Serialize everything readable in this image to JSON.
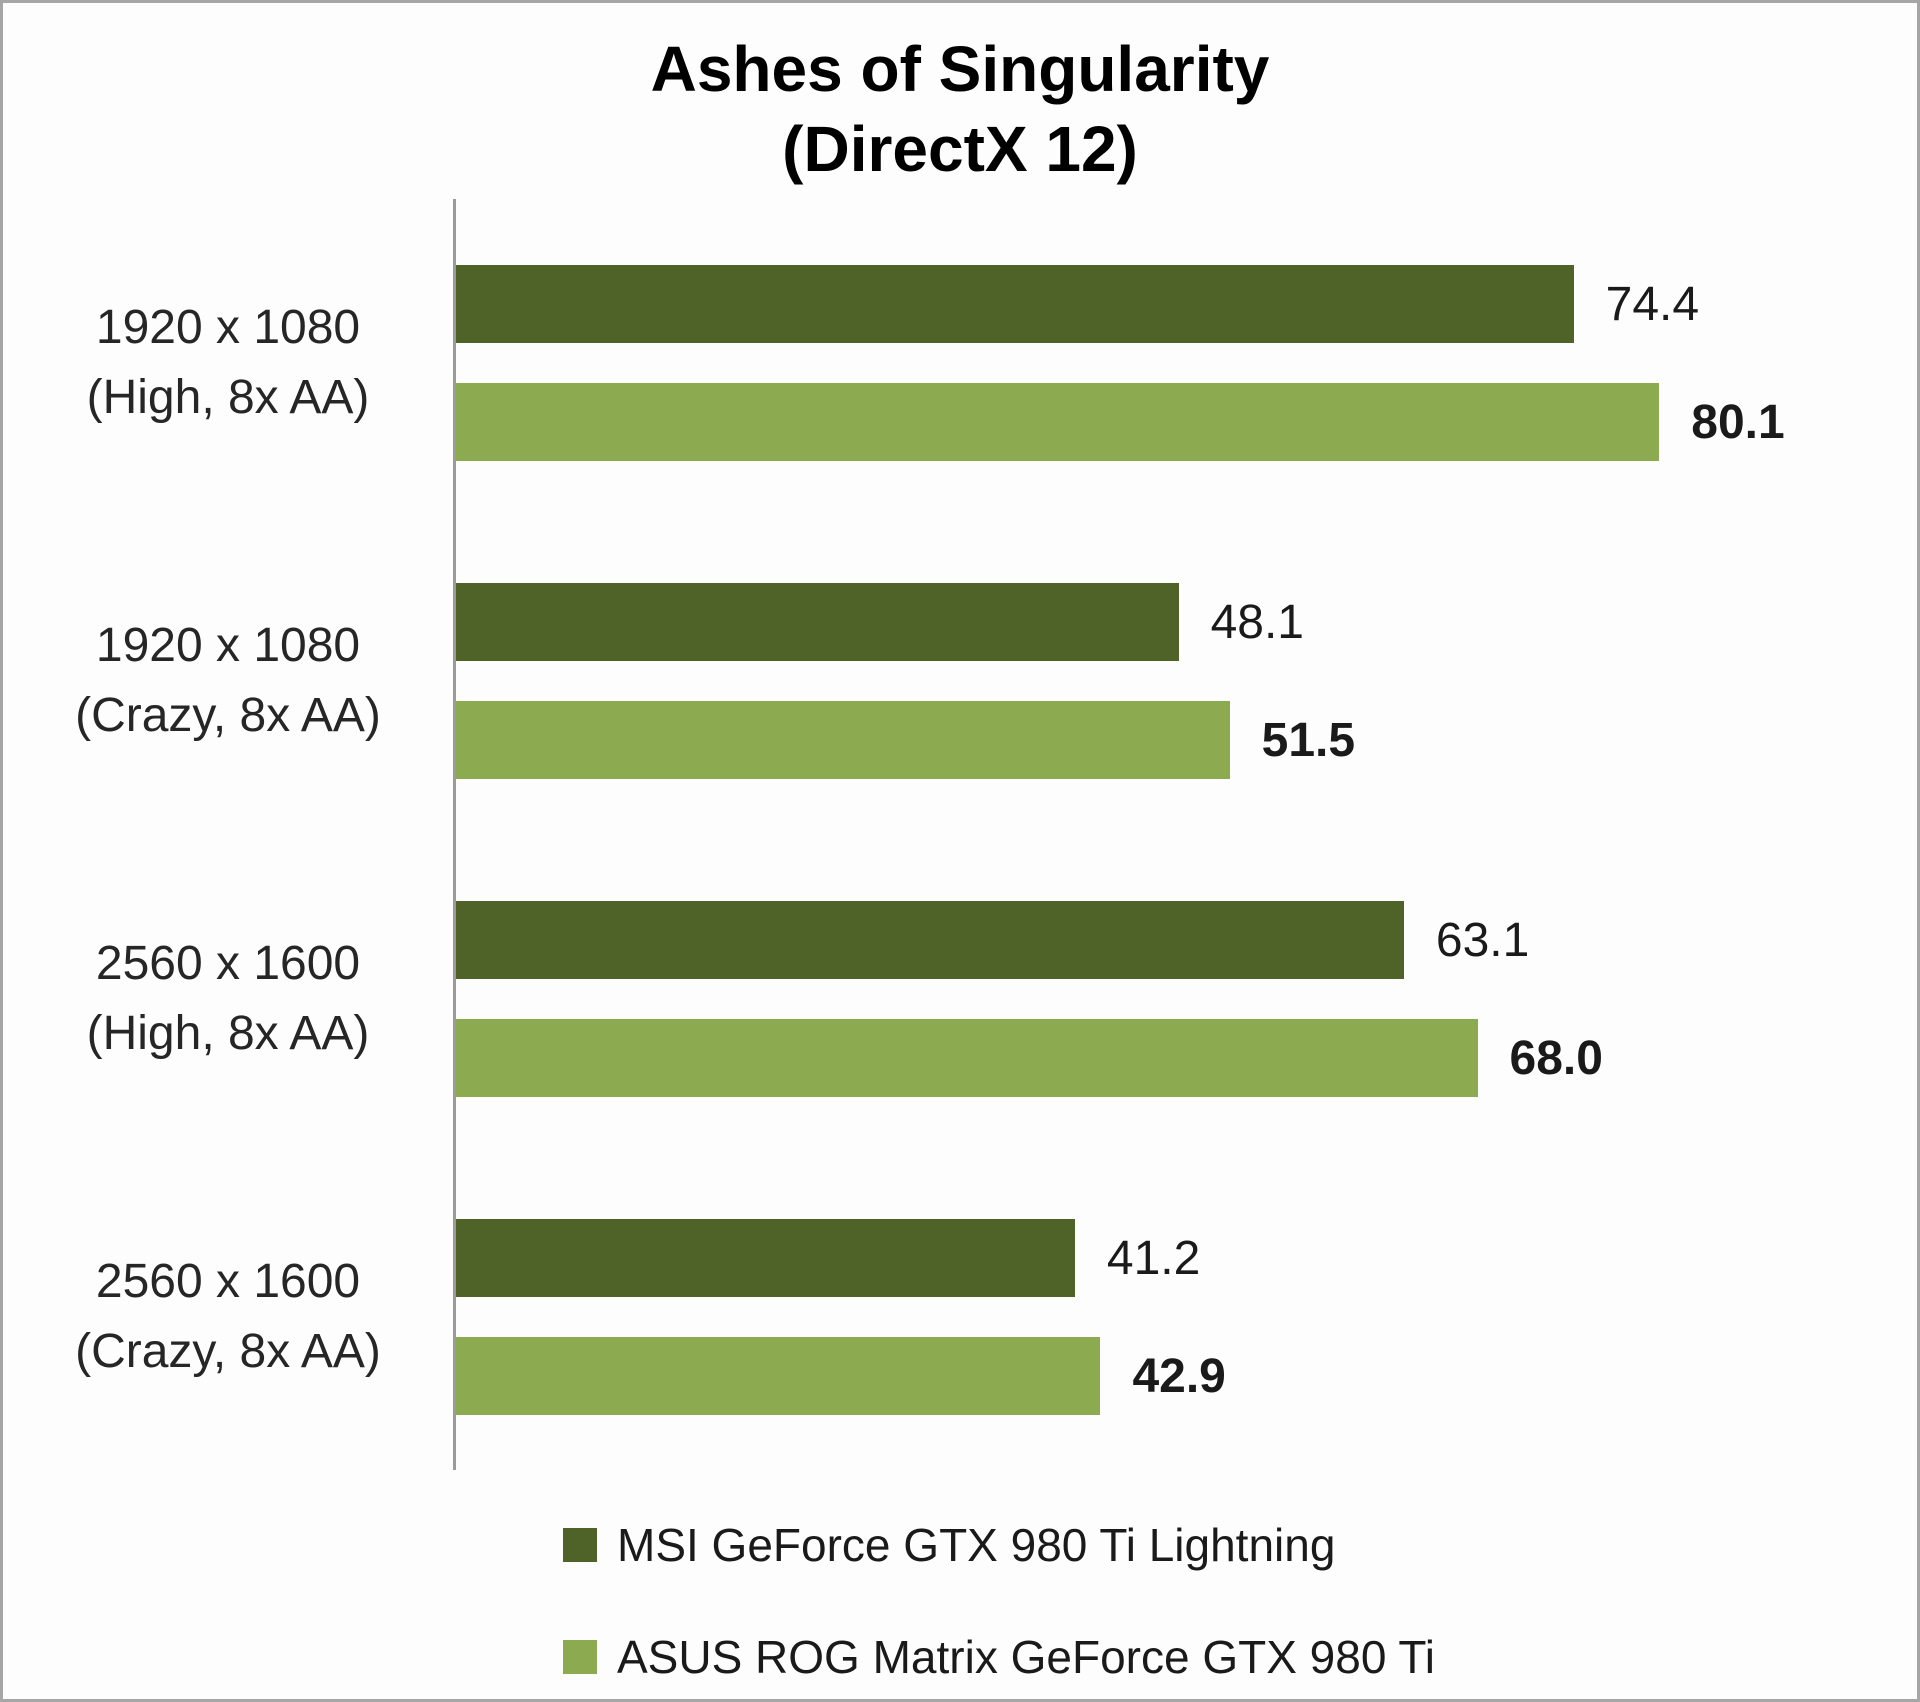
{
  "title": {
    "line1": "Ashes of Singularity",
    "line2": "(DirectX 12)"
  },
  "colors": {
    "series1": "#4f6228",
    "series2": "#8caa50",
    "axis": "#9b9b9b",
    "border": "#a6a6a6",
    "text": "#1a1a1a"
  },
  "chart_data": {
    "type": "bar",
    "orientation": "horizontal",
    "title": "Ashes of Singularity (DirectX 12)",
    "categories": [
      "1920 x 1080 (High, 8x AA)",
      "1920 x 1080 (Crazy, 8x AA)",
      "2560 x 1600 (High, 8x AA)",
      "2560 x 1600 (Crazy, 8x AA)"
    ],
    "category_lines": [
      [
        "1920 x 1080",
        "(High, 8x AA)"
      ],
      [
        "1920 x 1080",
        "(Crazy, 8x AA)"
      ],
      [
        "2560 x 1600",
        "(High, 8x AA)"
      ],
      [
        "2560 x 1600",
        "(Crazy, 8x AA)"
      ]
    ],
    "series": [
      {
        "name": "MSI GeForce GTX 980 Ti Lightning",
        "color": "#4f6228",
        "values": [
          74.4,
          48.1,
          63.1,
          41.2
        ]
      },
      {
        "name": "ASUS ROG Matrix GeForce GTX 980 Ti",
        "color": "#8caa50",
        "values": [
          80.1,
          51.5,
          68.0,
          42.9
        ]
      }
    ],
    "xlim": [
      0,
      90
    ],
    "grid": false,
    "legend_position": "bottom",
    "value_labels": true
  }
}
